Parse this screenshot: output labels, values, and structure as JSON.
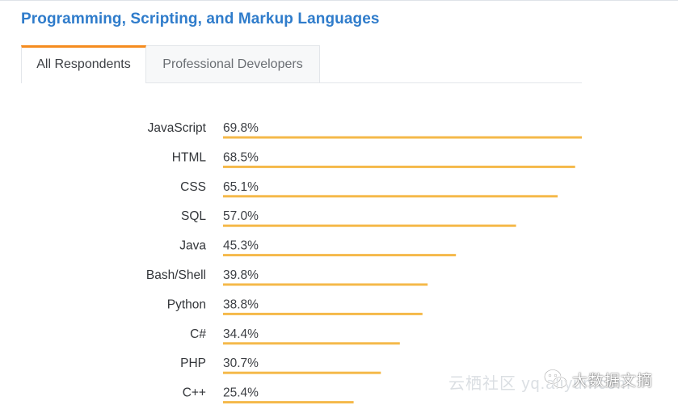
{
  "title": "Programming, Scripting, and Markup Languages",
  "tabs": [
    {
      "label": "All Respondents",
      "active": true
    },
    {
      "label": "Professional Developers",
      "active": false
    }
  ],
  "colors": {
    "title": "#2f7ccb",
    "bar": "#f5b94a",
    "tab_accent": "#f58c1f"
  },
  "chart_data": {
    "type": "bar",
    "orientation": "horizontal",
    "categories": [
      "JavaScript",
      "HTML",
      "CSS",
      "SQL",
      "Java",
      "Bash/Shell",
      "Python",
      "C#",
      "PHP",
      "C++"
    ],
    "values": [
      69.8,
      68.5,
      65.1,
      57.0,
      45.3,
      39.8,
      38.8,
      34.4,
      30.7,
      25.4
    ],
    "value_labels": [
      "69.8%",
      "68.5%",
      "65.1%",
      "57.0%",
      "45.3%",
      "39.8%",
      "38.8%",
      "34.4%",
      "30.7%",
      "25.4%"
    ],
    "unit": "%",
    "xlim": [
      0,
      69.8
    ],
    "grid": false,
    "legend": "none"
  },
  "watermark": {
    "left_text": "云栖社区 yq.aliyun.com",
    "brand_text": "大数据文摘",
    "icon": "wechat-icon"
  }
}
